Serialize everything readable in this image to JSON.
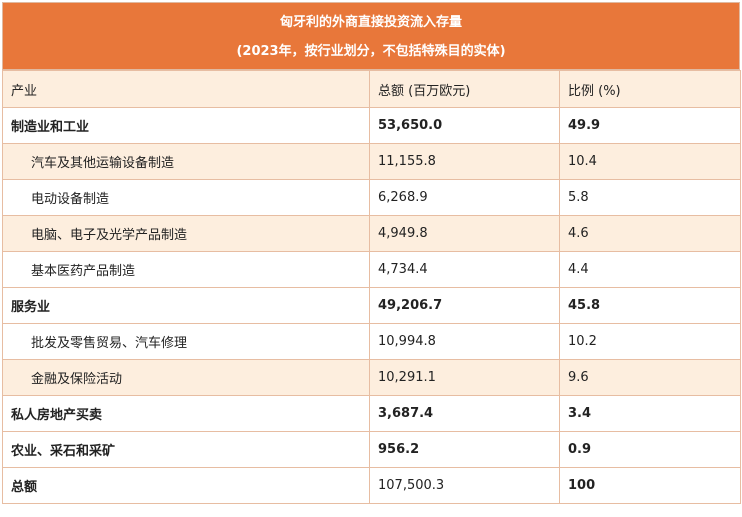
{
  "title": {
    "line1": "匈牙利的外商直接投资流入存量",
    "line2": "(2023年，按行业划分，不包括特殊目的实体)"
  },
  "columns": [
    "产业",
    "总额 (百万欧元)",
    "比例 (%)"
  ],
  "rows": [
    {
      "name": "制造业和工业",
      "amount": "53,650.0",
      "pct": "49.9"
    },
    {
      "name": "汽车及其他运输设备制造",
      "amount": "11,155.8",
      "pct": "10.4"
    },
    {
      "name": "电动设备制造",
      "amount": "6,268.9",
      "pct": "5.8"
    },
    {
      "name": "电脑、电子及光学产品制造",
      "amount": "4,949.8",
      "pct": "4.6"
    },
    {
      "name": "基本医药产品制造",
      "amount": "4,734.4",
      "pct": "4.4"
    },
    {
      "name": "服务业",
      "amount": "49,206.7",
      "pct": "45.8"
    },
    {
      "name": "批发及零售贸易、汽车修理",
      "amount": "10,994.8",
      "pct": "10.2"
    },
    {
      "name": "金融及保险活动",
      "amount": "10,291.1",
      "pct": "9.6"
    },
    {
      "name": "私人房地产买卖",
      "amount": "3,687.4",
      "pct": "3.4"
    },
    {
      "name": "农业、采石和采矿",
      "amount": "956.2",
      "pct": "0.9"
    },
    {
      "name": "总额",
      "amount": "107,500.3",
      "pct": "100"
    }
  ],
  "colors": {
    "header_bg": "#e8773a",
    "band_bg": "#fdeede",
    "border": "#e7bda2"
  }
}
